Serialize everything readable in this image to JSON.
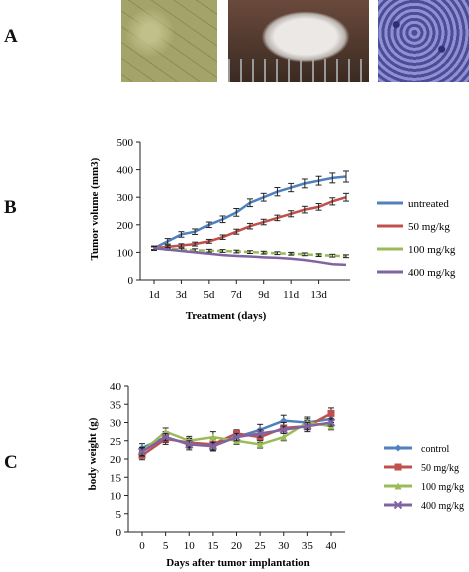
{
  "panels": {
    "a": "A",
    "b": "B",
    "c": "C"
  },
  "photos": [
    {
      "name": "cell-culture-photo",
      "colors": [
        "#a4a46a",
        "#c2c08a",
        "#8b8c55"
      ]
    },
    {
      "name": "mouse-tumor-photo",
      "colors": [
        "#6a4a3c",
        "#ece8e6",
        "#b8b2ad"
      ]
    },
    {
      "name": "tumor-tissue-stain-photo",
      "colors": [
        "#4b4d9a",
        "#8f90cf",
        "#2e2f72"
      ]
    }
  ],
  "chart_data": [
    {
      "type": "line",
      "title": "",
      "xlabel": "Treatment  (days)",
      "ylabel": "Tumor volume  (mm3)",
      "categories": [
        "1d",
        "3d",
        "5d",
        "7d",
        "9d",
        "11d",
        "13d"
      ],
      "x": [
        1,
        2,
        3,
        4,
        5,
        6,
        7,
        8,
        9,
        10,
        11,
        12,
        13,
        14,
        15
      ],
      "ylim": [
        0,
        500
      ],
      "yticks": [
        0,
        100,
        200,
        300,
        400,
        500
      ],
      "grid": false,
      "legend_position": "right",
      "series": [
        {
          "name": "untreated",
          "color": "#4f81bd",
          "values": [
            115,
            140,
            165,
            175,
            200,
            220,
            245,
            280,
            300,
            320,
            335,
            350,
            360,
            370,
            375
          ],
          "error": [
            8,
            10,
            10,
            10,
            10,
            12,
            14,
            14,
            14,
            15,
            15,
            16,
            16,
            18,
            20
          ]
        },
        {
          "name": "50 mg/kg",
          "color": "#c0504d",
          "values": [
            115,
            120,
            125,
            130,
            140,
            155,
            175,
            195,
            210,
            225,
            240,
            255,
            265,
            285,
            300
          ],
          "error": [
            6,
            6,
            6,
            7,
            7,
            8,
            9,
            10,
            10,
            10,
            11,
            12,
            12,
            13,
            14
          ]
        },
        {
          "name": "100 mg/kg",
          "color": "#9bbb59",
          "values": [
            115,
            113,
            110,
            108,
            106,
            105,
            103,
            101,
            99,
            97,
            95,
            93,
            90,
            88,
            86
          ],
          "error": [
            5,
            5,
            5,
            5,
            5,
            5,
            5,
            5,
            5,
            5,
            5,
            5,
            5,
            5,
            5
          ]
        },
        {
          "name": "400 mg/kg",
          "color": "#8064a2",
          "values": [
            115,
            110,
            105,
            100,
            95,
            90,
            87,
            85,
            82,
            80,
            77,
            72,
            65,
            57,
            55
          ],
          "error": [
            0,
            0,
            0,
            0,
            0,
            0,
            0,
            0,
            0,
            0,
            0,
            0,
            0,
            0,
            0
          ]
        }
      ]
    },
    {
      "type": "line",
      "title": "",
      "xlabel": "Days  after tumor implantation",
      "ylabel": "body weight (g)",
      "x": [
        0,
        5,
        10,
        15,
        20,
        25,
        30,
        35,
        40
      ],
      "xlim": [
        0,
        40
      ],
      "ylim": [
        0,
        40
      ],
      "yticks": [
        0,
        5,
        10,
        15,
        20,
        25,
        30,
        35,
        40
      ],
      "grid": false,
      "legend_position": "right",
      "series": [
        {
          "name": "control",
          "color": "#4f81bd",
          "marker": "diamond",
          "values": [
            23,
            26,
            24,
            24,
            26,
            28,
            30.5,
            30,
            31
          ],
          "error": [
            1.2,
            1.5,
            1.5,
            1.8,
            1.2,
            1.5,
            1.5,
            1.5,
            1.5
          ]
        },
        {
          "name": "50 mg/kg",
          "color": "#c0504d",
          "marker": "square",
          "values": [
            21,
            25.5,
            24.5,
            24,
            27,
            26,
            28.5,
            29,
            32.5
          ],
          "error": [
            1.2,
            1.5,
            1.2,
            1.5,
            1.0,
            1.5,
            1.5,
            1.5,
            1.5
          ]
        },
        {
          "name": "100 mg/kg",
          "color": "#9bbb59",
          "marker": "triangle",
          "values": [
            22,
            27.5,
            25,
            26,
            25,
            24,
            26,
            30,
            29
          ],
          "error": [
            1.2,
            1.0,
            1.2,
            1.5,
            1.0,
            1.0,
            1.0,
            1.0,
            1.0
          ]
        },
        {
          "name": "400 mg/kg",
          "color": "#8064a2",
          "marker": "x",
          "values": [
            22,
            26,
            24,
            23.5,
            26,
            27,
            28,
            29,
            30
          ],
          "error": [
            1.0,
            1.0,
            1.0,
            1.0,
            1.0,
            1.0,
            1.0,
            1.0,
            1.0
          ]
        }
      ]
    }
  ]
}
